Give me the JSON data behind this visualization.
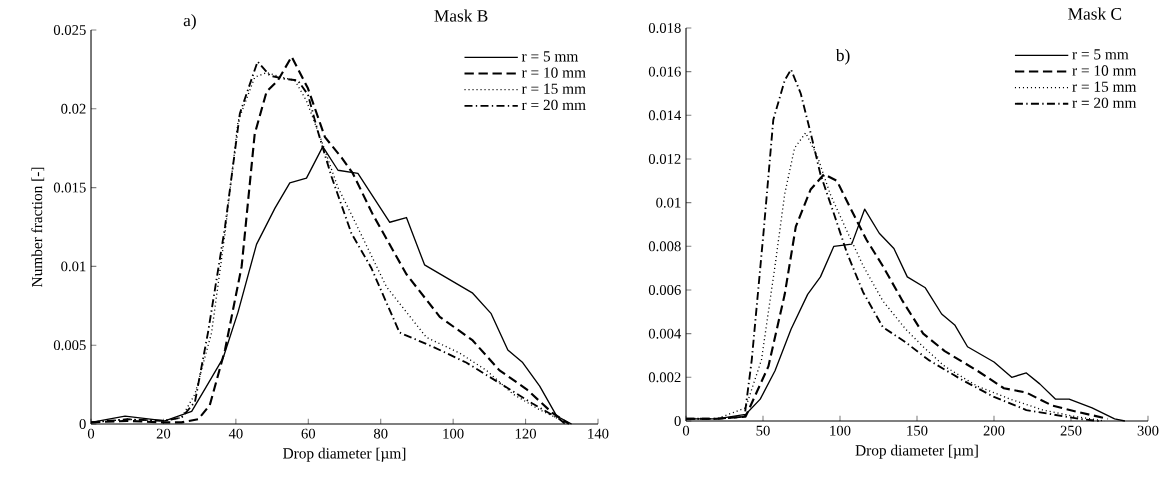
{
  "chart_data": [
    {
      "type": "line",
      "title": "Mask B",
      "xlabel": "Drop diameter [µm]",
      "ylabel": "Number fraction [-]",
      "annotations": [
        "a)"
      ],
      "xlim": [
        0,
        140
      ],
      "ylim": [
        0,
        0.025
      ],
      "xticks": [
        0,
        20,
        40,
        60,
        80,
        100,
        120,
        140
      ],
      "yticks": [
        0,
        0.005,
        0.01,
        0.015,
        0.02,
        0.025
      ],
      "legend": "top right",
      "series": [
        {
          "name": "r = 5 mm",
          "color": "#000000",
          "line_style": "solid",
          "x": [
            0,
            9.4,
            20.4,
            27.8,
            31.4,
            36.5,
            40.6,
            45.7,
            50.8,
            54.9,
            59.5,
            64,
            68.2,
            73.7,
            82.5,
            87.1,
            92.1,
            105.4,
            110.5,
            115.1,
            119.2,
            123.9,
            128.6,
            132.7
          ],
          "values": [
            0.0001,
            0.0005,
            0.0002,
            0.0008,
            0.0022,
            0.0042,
            0.0071,
            0.0114,
            0.0137,
            0.0153,
            0.0156,
            0.0176,
            0.0161,
            0.0159,
            0.0128,
            0.0131,
            0.0101,
            0.0083,
            0.007,
            0.0047,
            0.0039,
            0.0024,
            0.0005,
            0
          ]
        },
        {
          "name": "r = 10 mm",
          "color": "#000000",
          "line_style": "dashed",
          "x": [
            0,
            10,
            20,
            25,
            29.6,
            32.8,
            37,
            41.6,
            45.2,
            48.5,
            51.6,
            55.4,
            59.9,
            64.6,
            69.2,
            72.3,
            77.8,
            87.1,
            96.3,
            105.4,
            112.8,
            120.3,
            127.4,
            132
          ],
          "values": [
            0.0001,
            0.0002,
            0.0001,
            0.0001,
            0.0003,
            0.0012,
            0.0047,
            0.01,
            0.0184,
            0.0211,
            0.0218,
            0.0233,
            0.0213,
            0.0182,
            0.0169,
            0.0159,
            0.0133,
            0.0095,
            0.0068,
            0.0053,
            0.0034,
            0.0022,
            0.0007,
            0
          ]
        },
        {
          "name": "r = 15 mm",
          "color": "#000000",
          "line_style": "dotted",
          "x": [
            0,
            10,
            20,
            25,
            28.7,
            33.3,
            37,
            40.6,
            45.2,
            48.5,
            52.6,
            56.3,
            59.5,
            63.6,
            68.2,
            71.9,
            81.6,
            92.6,
            101.8,
            109.2,
            116.5,
            123.9,
            131.2
          ],
          "values": [
            0.0001,
            0.0003,
            0.0002,
            0.0004,
            0.0019,
            0.0058,
            0.0121,
            0.0192,
            0.022,
            0.0223,
            0.022,
            0.0218,
            0.0205,
            0.018,
            0.015,
            0.0133,
            0.0087,
            0.0055,
            0.0045,
            0.0034,
            0.0019,
            0.0009,
            0.0001
          ]
        },
        {
          "name": "r = 20 mm",
          "color": "#000000",
          "line_style": "dashdot",
          "x": [
            0,
            10,
            20,
            25,
            28.7,
            32.3,
            37,
            41.1,
            46,
            49.4,
            53.5,
            57.1,
            59.9,
            62.6,
            66.4,
            71.9,
            77.4,
            85.2,
            94.4,
            103.6,
            112.8,
            121.9,
            129.4,
            131
          ],
          "values": [
            0.0001,
            0.0003,
            0.0002,
            0.0004,
            0.0014,
            0.0058,
            0.0125,
            0.0197,
            0.023,
            0.0221,
            0.0219,
            0.0218,
            0.0209,
            0.0186,
            0.0157,
            0.0121,
            0.0099,
            0.0058,
            0.0049,
            0.0039,
            0.0026,
            0.0013,
            0.0003,
            0
          ]
        }
      ]
    },
    {
      "type": "line",
      "title": "Mask C",
      "xlabel": "Drop diameter [µm]",
      "annotations": [
        "b)"
      ],
      "xlim": [
        0,
        300
      ],
      "ylim": [
        0,
        0.018
      ],
      "xticks": [
        0,
        50,
        100,
        150,
        200,
        250,
        300
      ],
      "yticks": [
        0,
        0.002,
        0.004,
        0.006,
        0.008,
        0.01,
        0.012,
        0.014,
        0.016,
        0.018
      ],
      "legend": "top right",
      "series": [
        {
          "name": "r = 5 mm",
          "color": "#000000",
          "line_style": "solid",
          "x": [
            0,
            20,
            38.7,
            48.2,
            57.8,
            68.2,
            79,
            87.3,
            96,
            107.6,
            116,
            125.5,
            135,
            143.7,
            155.4,
            166,
            174.5,
            182.8,
            200,
            211.5,
            221,
            229.7,
            240,
            248.8,
            263.7,
            278.3,
            285
          ],
          "values": [
            0.0001,
            0.0001,
            0.0003,
            0.001,
            0.0023,
            0.0042,
            0.0058,
            0.0066,
            0.008,
            0.0081,
            0.0097,
            0.0086,
            0.0079,
            0.0066,
            0.0061,
            0.0049,
            0.0044,
            0.0034,
            0.0027,
            0.002,
            0.0022,
            0.0017,
            0.001,
            0.001,
            0.0006,
            0.0001,
            0
          ]
        },
        {
          "name": "r = 10 mm",
          "color": "#000000",
          "line_style": "dashed",
          "x": [
            0,
            20,
            38.7,
            53.5,
            64.1,
            71.3,
            80.9,
            89.6,
            98,
            106.4,
            117.2,
            127.8,
            140.6,
            154,
            168,
            189.2,
            206.4,
            221,
            238,
            255.2,
            274
          ],
          "values": [
            0.0001,
            0.0001,
            0.0002,
            0.0025,
            0.0058,
            0.0089,
            0.0106,
            0.0113,
            0.011,
            0.0098,
            0.0083,
            0.0071,
            0.0055,
            0.004,
            0.0032,
            0.0023,
            0.0015,
            0.0013,
            0.0007,
            0.0004,
            0.0001
          ]
        },
        {
          "name": "r = 15 mm",
          "color": "#000000",
          "line_style": "dotted",
          "x": [
            0,
            20,
            38.7,
            49,
            57.8,
            64.1,
            70.5,
            77.7,
            85.4,
            93.6,
            104.5,
            115.1,
            127.8,
            142.7,
            154,
            168,
            189,
            210.6,
            231.8,
            253,
            272
          ],
          "values": [
            0.0001,
            0.0001,
            0.0006,
            0.0028,
            0.0071,
            0.0104,
            0.0125,
            0.0132,
            0.0121,
            0.0104,
            0.0087,
            0.0071,
            0.0055,
            0.0042,
            0.0034,
            0.0025,
            0.0016,
            0.001,
            0.0005,
            0.0002,
            0
          ]
        },
        {
          "name": "r = 20 mm",
          "color": "#000000",
          "line_style": "dashdot",
          "x": [
            0,
            20,
            38,
            42.7,
            50.3,
            56.7,
            64.1,
            68.2,
            74.5,
            80.9,
            87.3,
            96,
            104.5,
            115,
            127.8,
            142.7,
            157.4,
            178.8,
            200,
            221,
            238,
            255,
            268
          ],
          "values": [
            0.0001,
            0.0001,
            0.0002,
            0.0028,
            0.0086,
            0.0138,
            0.0156,
            0.0161,
            0.015,
            0.0132,
            0.0113,
            0.0095,
            0.0077,
            0.0059,
            0.0043,
            0.0036,
            0.0028,
            0.0019,
            0.0011,
            0.0005,
            0.0003,
            0.0001,
            0
          ]
        }
      ]
    }
  ]
}
